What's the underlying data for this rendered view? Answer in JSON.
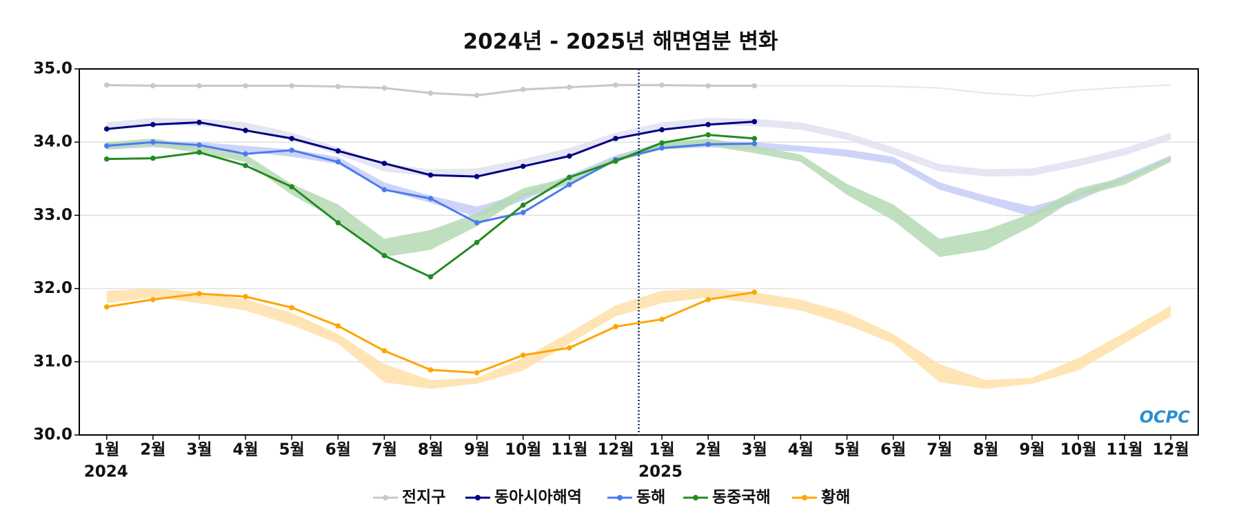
{
  "chart_data": {
    "type": "line",
    "title": "2024년 - 2025년 해면염분 변화",
    "categories": [
      "1월",
      "2월",
      "3월",
      "4월",
      "5월",
      "6월",
      "7월",
      "8월",
      "9월",
      "10월",
      "11월",
      "12월",
      "1월",
      "2월",
      "3월",
      "4월",
      "5월",
      "6월",
      "7월",
      "8월",
      "9월",
      "10월",
      "11월",
      "12월"
    ],
    "year_labels": [
      "2024",
      null,
      null,
      null,
      null,
      null,
      null,
      null,
      null,
      null,
      null,
      null,
      "2025",
      null,
      null,
      null,
      null,
      null,
      null,
      null,
      null,
      null,
      null,
      null
    ],
    "ylim": [
      30.0,
      35.0
    ],
    "yticks": [
      {
        "value": 30,
        "label": "30.0"
      },
      {
        "value": 31,
        "label": "31.0"
      },
      {
        "value": 32,
        "label": "32.0"
      },
      {
        "value": 33,
        "label": "33.0"
      },
      {
        "value": 34,
        "label": "34.0"
      },
      {
        "value": 35,
        "label": "35.0"
      }
    ],
    "grid": true,
    "legend": "bottom",
    "watermark": "OCPC",
    "series": [
      {
        "name": "전지구",
        "color": "#c8c8c8",
        "band_color": "#e4e4e4",
        "values": [
          34.78,
          34.77,
          34.77,
          34.77,
          34.77,
          34.76,
          34.74,
          34.67,
          34.64,
          34.72,
          34.75,
          34.78,
          34.78,
          34.77,
          34.77,
          null,
          null,
          null,
          null,
          null,
          null,
          null,
          null,
          null
        ],
        "band_low": [
          34.76,
          34.76,
          34.76,
          34.76,
          34.76,
          34.75,
          34.73,
          34.66,
          34.62,
          34.7,
          34.74,
          34.77,
          34.76,
          34.76,
          34.76,
          34.76,
          34.76,
          34.75,
          34.73,
          34.66,
          34.62,
          34.7,
          34.74,
          34.77
        ],
        "band_high": [
          34.78,
          34.78,
          34.78,
          34.78,
          34.78,
          34.77,
          34.75,
          34.68,
          34.64,
          34.72,
          34.76,
          34.79,
          34.78,
          34.78,
          34.78,
          34.78,
          34.78,
          34.77,
          34.75,
          34.68,
          34.64,
          34.72,
          34.76,
          34.79
        ]
      },
      {
        "name": "동아시아해역",
        "color": "#000080",
        "band_color": "#e2e0f2",
        "values": [
          34.18,
          34.24,
          34.27,
          34.16,
          34.05,
          33.88,
          33.71,
          33.55,
          33.53,
          33.67,
          33.81,
          34.05,
          34.17,
          34.24,
          34.28,
          null,
          null,
          null,
          null,
          null,
          null,
          null,
          null,
          null
        ],
        "band_low": [
          34.17,
          34.23,
          34.22,
          34.17,
          34.03,
          33.83,
          33.6,
          33.53,
          33.54,
          33.67,
          33.82,
          34.03,
          34.17,
          34.23,
          34.22,
          34.17,
          34.03,
          33.83,
          33.6,
          33.53,
          33.54,
          33.67,
          33.82,
          34.03
        ],
        "band_high": [
          34.27,
          34.33,
          34.32,
          34.27,
          34.13,
          33.93,
          33.7,
          33.63,
          33.64,
          33.77,
          33.92,
          34.13,
          34.27,
          34.33,
          34.32,
          34.27,
          34.13,
          33.93,
          33.7,
          33.63,
          33.64,
          33.77,
          33.92,
          34.13
        ]
      },
      {
        "name": "동해",
        "color": "#4a7bf0",
        "band_color": "#c6cdf8",
        "values": [
          33.95,
          34.0,
          33.96,
          33.84,
          33.89,
          33.73,
          33.35,
          33.23,
          32.9,
          33.04,
          33.42,
          33.76,
          33.92,
          33.97,
          33.98,
          null,
          null,
          null,
          null,
          null,
          null,
          null,
          null,
          null
        ],
        "band_low": [
          33.9,
          33.93,
          33.9,
          33.87,
          33.8,
          33.7,
          33.35,
          33.17,
          32.98,
          33.2,
          33.48,
          33.75,
          33.9,
          33.93,
          33.9,
          33.87,
          33.8,
          33.7,
          33.35,
          33.17,
          32.98,
          33.2,
          33.48,
          33.75
        ],
        "band_high": [
          34.0,
          34.02,
          34.0,
          33.95,
          33.9,
          33.8,
          33.45,
          33.27,
          33.12,
          33.3,
          33.55,
          33.82,
          34.0,
          34.02,
          34.0,
          33.95,
          33.9,
          33.8,
          33.45,
          33.27,
          33.12,
          33.3,
          33.55,
          33.82
        ]
      },
      {
        "name": "동중국해",
        "color": "#228b22",
        "band_color": "#b5d9b3",
        "values": [
          33.77,
          33.78,
          33.86,
          33.68,
          33.39,
          32.9,
          32.45,
          32.16,
          32.63,
          33.14,
          33.52,
          33.74,
          33.99,
          34.1,
          34.05,
          null,
          null,
          null,
          null,
          null,
          null,
          null,
          null,
          null
        ],
        "band_low": [
          33.9,
          33.95,
          33.85,
          33.73,
          33.28,
          32.93,
          32.43,
          32.53,
          32.85,
          33.25,
          33.42,
          33.73,
          33.9,
          33.95,
          33.85,
          33.73,
          33.28,
          32.93,
          32.43,
          32.53,
          32.85,
          33.25,
          33.42,
          33.73
        ],
        "band_high": [
          34.0,
          34.05,
          33.95,
          33.83,
          33.43,
          33.15,
          32.68,
          32.8,
          33.03,
          33.37,
          33.52,
          33.8,
          34.0,
          34.05,
          33.95,
          33.83,
          33.43,
          33.15,
          32.68,
          32.8,
          33.03,
          33.37,
          33.52,
          33.8
        ]
      },
      {
        "name": "황해",
        "color": "#ffa500",
        "band_color": "#ffe0a8",
        "values": [
          31.75,
          31.85,
          31.93,
          31.89,
          31.74,
          31.49,
          31.15,
          30.89,
          30.85,
          31.09,
          31.19,
          31.48,
          31.58,
          31.85,
          31.95,
          null,
          null,
          null,
          null,
          null,
          null,
          null,
          null,
          null
        ],
        "band_low": [
          31.8,
          31.88,
          31.8,
          31.7,
          31.5,
          31.25,
          30.72,
          30.63,
          30.7,
          30.88,
          31.25,
          31.62,
          31.8,
          31.88,
          31.8,
          31.7,
          31.5,
          31.25,
          30.72,
          30.63,
          30.7,
          30.88,
          31.25,
          31.62
        ],
        "band_high": [
          31.97,
          32.0,
          31.95,
          31.85,
          31.67,
          31.38,
          30.97,
          30.75,
          30.78,
          31.05,
          31.4,
          31.77,
          31.97,
          32.0,
          31.95,
          31.85,
          31.67,
          31.38,
          30.97,
          30.75,
          30.78,
          31.05,
          31.4,
          31.77
        ]
      }
    ]
  }
}
